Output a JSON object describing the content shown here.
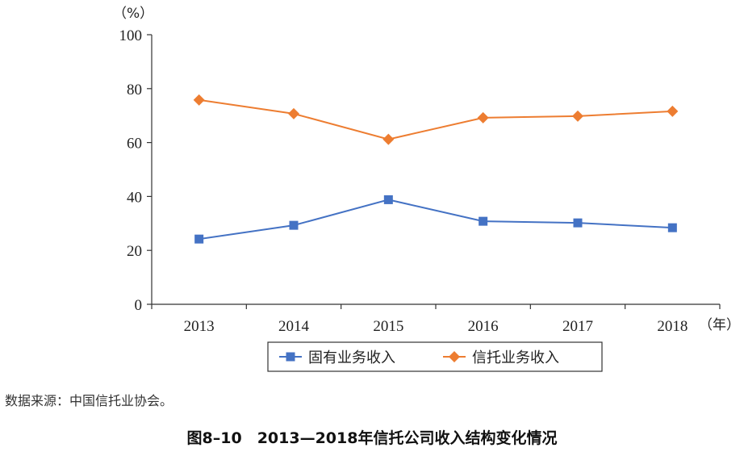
{
  "chart_data": {
    "type": "line",
    "title": "图8–10　2013—2018年信托公司收入结构变化情况",
    "ylabel": "（%）",
    "xlabel": "（年）",
    "ylim": [
      0,
      100
    ],
    "yticks": [
      "0",
      "20",
      "40",
      "60",
      "80",
      "100"
    ],
    "categories": [
      "2013",
      "2014",
      "2015",
      "2016",
      "2017",
      "2018"
    ],
    "series": [
      {
        "name": "固有业务收入",
        "values": [
          24.2,
          29.3,
          38.8,
          30.8,
          30.2,
          28.4
        ],
        "color": "#4472c4",
        "marker": "square"
      },
      {
        "name": "信托业务收入",
        "values": [
          75.8,
          70.7,
          61.2,
          69.2,
          69.8,
          71.6
        ],
        "color": "#ed7d31",
        "marker": "diamond"
      }
    ],
    "legend_position": "bottom",
    "grid": false
  },
  "source_note": "数据来源：中国信托业协会。",
  "caption": "图8–10　2013—2018年信托公司收入结构变化情况"
}
